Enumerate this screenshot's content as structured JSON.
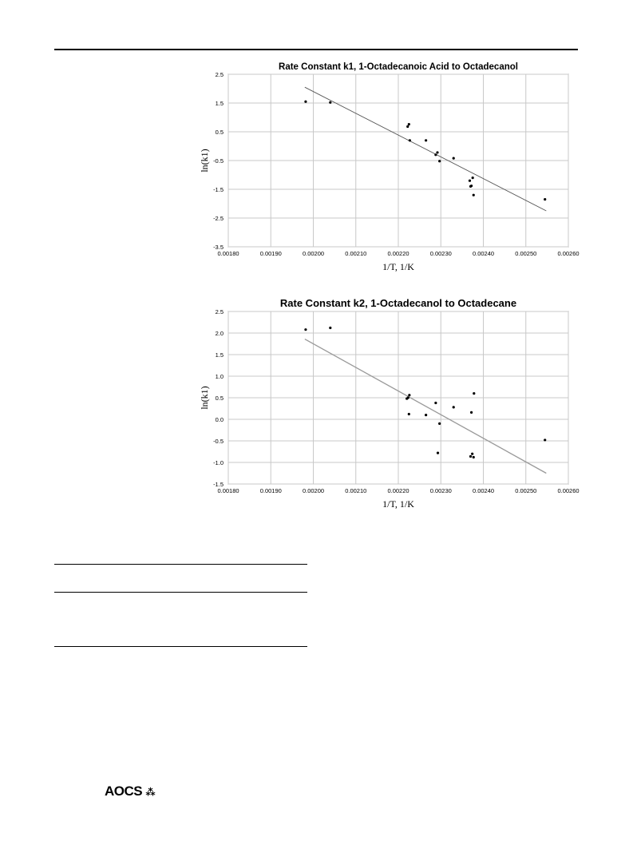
{
  "chart_data": [
    {
      "type": "scatter",
      "title": "Rate Constant k1, 1-Octadecanoic Acid to Octadecanol",
      "xlabel": "1/T, 1/K",
      "ylabel": "ln(k1)",
      "xlim": [
        0.0018,
        0.0026
      ],
      "ylim": [
        -3.5,
        2.5
      ],
      "xticks": [
        "0.00180",
        "0.00190",
        "0.00200",
        "0.00210",
        "0.00220",
        "0.00230",
        "0.00240",
        "0.00250",
        "0.00260"
      ],
      "yticks": [
        "-3.5",
        "-2.5",
        "-1.5",
        "-0.5",
        "0.5",
        "1.5",
        "2.5"
      ],
      "grid": true,
      "points": [
        {
          "x": 0.001982,
          "y": 1.55
        },
        {
          "x": 0.00204,
          "y": 1.52
        },
        {
          "x": 0.002222,
          "y": 0.68
        },
        {
          "x": 0.002225,
          "y": 0.76
        },
        {
          "x": 0.002227,
          "y": 0.2
        },
        {
          "x": 0.002265,
          "y": 0.2
        },
        {
          "x": 0.002288,
          "y": -0.3
        },
        {
          "x": 0.002292,
          "y": -0.22
        },
        {
          "x": 0.002297,
          "y": -0.52
        },
        {
          "x": 0.00233,
          "y": -0.42
        },
        {
          "x": 0.002368,
          "y": -1.2
        },
        {
          "x": 0.00237,
          "y": -1.4
        },
        {
          "x": 0.002372,
          "y": -1.38
        },
        {
          "x": 0.002375,
          "y": -1.1
        },
        {
          "x": 0.002377,
          "y": -1.7
        },
        {
          "x": 0.002545,
          "y": -1.85
        }
      ],
      "trendline": [
        [
          0.00198,
          2.05
        ],
        [
          0.002548,
          -2.25
        ]
      ]
    },
    {
      "type": "scatter",
      "title": "Rate Constant k2, 1-Octadecanol to Octadecane",
      "xlabel": "1/T, 1/K",
      "ylabel": "ln(k1)",
      "xlim": [
        0.0018,
        0.0026
      ],
      "ylim": [
        -1.5,
        2.5
      ],
      "xticks": [
        "0.00180",
        "0.00190",
        "0.00200",
        "0.00210",
        "0.00220",
        "0.00230",
        "0.00240",
        "0.00250",
        "0.00260"
      ],
      "yticks": [
        "-1.5",
        "-1.0",
        "-0.5",
        "0.0",
        "0.5",
        "1.0",
        "1.5",
        "2.0",
        "2.5"
      ],
      "grid": true,
      "points": [
        {
          "x": 0.001982,
          "y": 2.08
        },
        {
          "x": 0.00204,
          "y": 2.12
        },
        {
          "x": 0.00222,
          "y": 0.48
        },
        {
          "x": 0.002223,
          "y": 0.5
        },
        {
          "x": 0.002226,
          "y": 0.56
        },
        {
          "x": 0.002225,
          "y": 0.12
        },
        {
          "x": 0.002265,
          "y": 0.1
        },
        {
          "x": 0.002288,
          "y": 0.38
        },
        {
          "x": 0.002293,
          "y": -0.78
        },
        {
          "x": 0.002297,
          "y": -0.1
        },
        {
          "x": 0.00233,
          "y": 0.28
        },
        {
          "x": 0.00237,
          "y": -0.86
        },
        {
          "x": 0.002372,
          "y": 0.16
        },
        {
          "x": 0.002374,
          "y": -0.8
        },
        {
          "x": 0.002377,
          "y": -0.88
        },
        {
          "x": 0.002378,
          "y": 0.6
        },
        {
          "x": 0.002545,
          "y": -0.48
        }
      ],
      "trendline": [
        [
          0.00198,
          1.86
        ],
        [
          0.002548,
          -1.25
        ]
      ]
    }
  ],
  "footer": {
    "logo_text": "AOCS",
    "logo_mark": "⁂"
  }
}
